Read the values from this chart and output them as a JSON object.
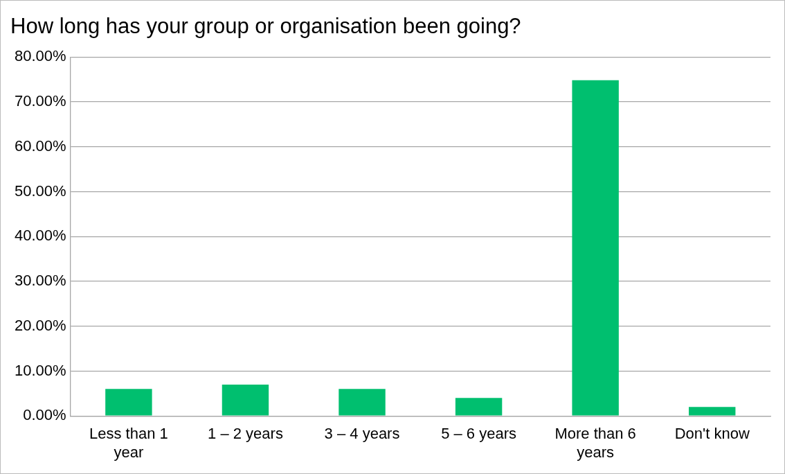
{
  "chart_data": {
    "type": "bar",
    "title": "How long has your group or organisation been going?",
    "categories": [
      "Less than 1 year",
      "1 – 2 years",
      "3 – 4 years",
      "5 – 6 years",
      "More than 6 years",
      "Don't know"
    ],
    "values": [
      6,
      7,
      6,
      4,
      74.8,
      2
    ],
    "color": "#00bf6f",
    "ylim": [
      0,
      80
    ],
    "yticks": [
      {
        "value": 0,
        "label": "0.00%"
      },
      {
        "value": 10,
        "label": "10.00%"
      },
      {
        "value": 20,
        "label": "20.00%"
      },
      {
        "value": 30,
        "label": "30.00%"
      },
      {
        "value": 40,
        "label": "40.00%"
      },
      {
        "value": 50,
        "label": "50.00%"
      },
      {
        "value": 60,
        "label": "60.00%"
      },
      {
        "value": 70,
        "label": "70.00%"
      },
      {
        "value": 80,
        "label": "80.00%"
      }
    ],
    "grid": "y"
  }
}
